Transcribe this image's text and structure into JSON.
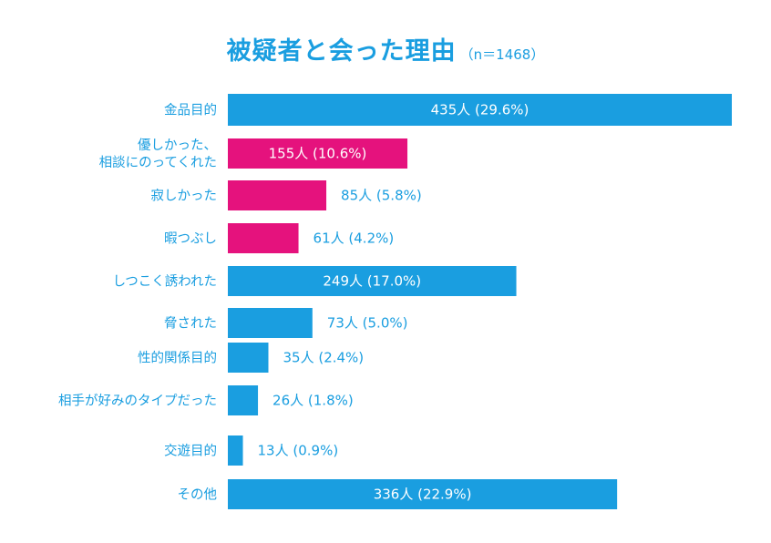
{
  "colors": {
    "accent": "#1a9ee0",
    "highlight": "#e5127d",
    "text": "#1a9ee0"
  },
  "chart_data": {
    "type": "bar",
    "orientation": "horizontal",
    "title": "被疑者と会った理由",
    "subtitle": "（n＝1468）",
    "categories": [
      "金品目的",
      "優しかった、\n相談にのってくれた",
      "寂しかった",
      "暇つぶし",
      "しつこく誘われた",
      "脅された",
      "性的関係目的",
      "相手が好みのタイプだった",
      "交遊目的",
      "その他"
    ],
    "values": [
      435,
      155,
      85,
      61,
      249,
      73,
      35,
      26,
      13,
      336
    ],
    "labels": [
      "435人 (29.6%)",
      "155人 (10.6%)",
      "85人 (5.8%)",
      "61人 (4.2%)",
      "249人 (17.0%)",
      "73人 (5.0%)",
      "35人 (2.4%)",
      "26人 (1.8%)",
      "13人 (0.9%)",
      "336人 (22.9%)"
    ],
    "highlighted": [
      false,
      true,
      true,
      true,
      false,
      false,
      false,
      false,
      false,
      false
    ],
    "label_inside": [
      true,
      true,
      false,
      false,
      true,
      false,
      false,
      false,
      false,
      true
    ],
    "xlim": [
      0,
      435
    ],
    "grid": false,
    "legend": "none"
  }
}
